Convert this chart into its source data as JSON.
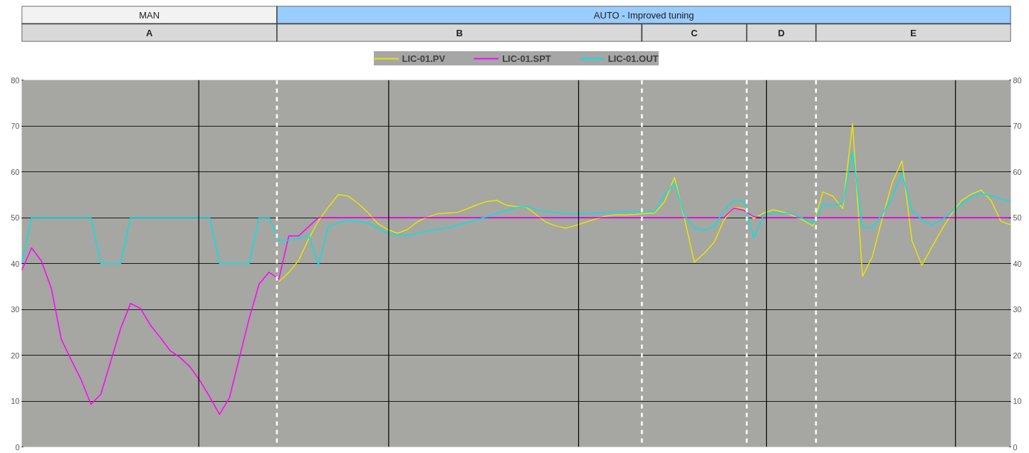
{
  "chart_data": {
    "type": "line",
    "legend": "top",
    "grid": "y",
    "tick_labels": "y",
    "line_style": "solid",
    "ylim": [
      0,
      80
    ],
    "yticks": [
      0,
      10,
      20,
      30,
      40,
      50,
      60,
      70,
      80
    ],
    "y2lim": [
      0,
      80
    ],
    "y2ticks": [
      0,
      10,
      20,
      30,
      40,
      50,
      60,
      70,
      80
    ],
    "categories": [
      null,
      null,
      null,
      null,
      null,
      null,
      null,
      null,
      null,
      null,
      null,
      null,
      null,
      null,
      null,
      null,
      null,
      null,
      null,
      null,
      null,
      null,
      null,
      null,
      null,
      null,
      null,
      null,
      null,
      null,
      null,
      null,
      null,
      null,
      null,
      null,
      null,
      null,
      null,
      null,
      null,
      null,
      null,
      null,
      null,
      null,
      null,
      null,
      null,
      null,
      null,
      null,
      null,
      null,
      null,
      null,
      null,
      null,
      null,
      null,
      null,
      null,
      null,
      null,
      null,
      null,
      null,
      null,
      null,
      null,
      null,
      null,
      null,
      null,
      null,
      null,
      null,
      null,
      null,
      null,
      null,
      null,
      null,
      null,
      null,
      null,
      null,
      null,
      null,
      null,
      null,
      null,
      null,
      null,
      null,
      null,
      null,
      null,
      null,
      null,
      null
    ],
    "annotations": [
      "MAN",
      "AUTO - Improved tuning",
      "A",
      "B",
      "C",
      "D",
      "E"
    ],
    "series": [
      {
        "name": "LIC-01.PV",
        "color": "#e6e600",
        "values": [
          null,
          null,
          null,
          null,
          null,
          null,
          null,
          null,
          null,
          null,
          null,
          null,
          null,
          null,
          null,
          null,
          null,
          null,
          null,
          null,
          null,
          null,
          null,
          null,
          null,
          null,
          36,
          38,
          40.7,
          45.3,
          49.3,
          52.3,
          55,
          54.7,
          53.1,
          51.1,
          48.7,
          47.4,
          46.6,
          47.4,
          49.1,
          50.1,
          50.8,
          51,
          51.1,
          51.9,
          52.8,
          53.5,
          53.8,
          52.7,
          52.4,
          52.3,
          50.7,
          49,
          48.2,
          47.7,
          48.3,
          49,
          49.7,
          50.3,
          50.6,
          50.6,
          50.7,
          50.9,
          51,
          53.5,
          58.7,
          49.8,
          40.3,
          42.2,
          44.6,
          49.5,
          52.2,
          52,
          49.8,
          51,
          51.7,
          51.2,
          50.4,
          49.4,
          48.2,
          55.6,
          54.7,
          52,
          70.5,
          37.2,
          41.5,
          49.8,
          57.6,
          62.4,
          45,
          39.6,
          43.5,
          47.3,
          50.8,
          53.7,
          55.1,
          56,
          53.7,
          49.2,
          48.4
        ]
      },
      {
        "name": "LIC-01.SPT",
        "color": "#ff00ff",
        "values": [
          38.5,
          43.4,
          40.5,
          34.5,
          23.5,
          19,
          14.7,
          9.3,
          11.5,
          18.7,
          25.8,
          31.3,
          30.2,
          26.6,
          23.9,
          21,
          19.5,
          17.5,
          14.5,
          10.9,
          7.1,
          10.7,
          19.4,
          28,
          35.5,
          38.1,
          36.6,
          46,
          46,
          48,
          50,
          50,
          50,
          50,
          50,
          50,
          50,
          50,
          50,
          50,
          50,
          50,
          50,
          50,
          50,
          50,
          50,
          50,
          50,
          50,
          50,
          50,
          50,
          50,
          50,
          50,
          50,
          50,
          50,
          50,
          50,
          50,
          50,
          50,
          50,
          50,
          50,
          50,
          50,
          50,
          50,
          50,
          52.1,
          51.6,
          50.2,
          50,
          50,
          50,
          50,
          50,
          50,
          50,
          50,
          50,
          50,
          50,
          50,
          50,
          50,
          50,
          50,
          50,
          50,
          50,
          50,
          50,
          50,
          50,
          50,
          50,
          50
        ]
      },
      {
        "name": "LIC-01.OUT",
        "color": "#00e5e5",
        "values": [
          40,
          50,
          50,
          50,
          50,
          50,
          50,
          50,
          40,
          40,
          40,
          50,
          50,
          50,
          50,
          50,
          50,
          50,
          50,
          50,
          40,
          40,
          40,
          40,
          50,
          50,
          45,
          45.1,
          45.4,
          46.2,
          39.6,
          48.2,
          48.8,
          49.4,
          49.2,
          48.8,
          47.8,
          46.5,
          46.3,
          46.1,
          46.6,
          47.1,
          47.4,
          47.8,
          48.3,
          48.9,
          49.5,
          50.2,
          50.9,
          51.5,
          52.2,
          52.4,
          51.8,
          51.3,
          51.1,
          50.9,
          50.8,
          50.9,
          51,
          51.1,
          51.2,
          51.2,
          51.3,
          51.2,
          51.3,
          55,
          57.6,
          50.5,
          47.7,
          47.2,
          48.1,
          51.5,
          53.8,
          53.6,
          45.6,
          50.5,
          51,
          50.9,
          50.8,
          49.8,
          48.7,
          53,
          52.6,
          53.1,
          64.4,
          48,
          47.7,
          50.8,
          54.3,
          59.7,
          51.5,
          49.6,
          48.4,
          49.5,
          51.2,
          52.9,
          54.6,
          55.3,
          54.7,
          54.1,
          53.5
        ]
      }
    ]
  }
}
